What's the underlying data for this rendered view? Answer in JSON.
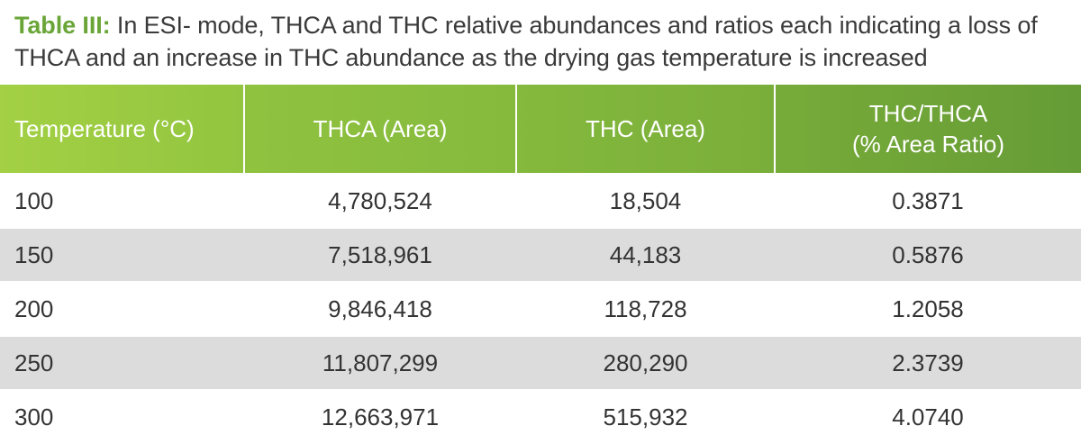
{
  "caption": {
    "label": "Table III:",
    "text": "In ESI- mode, THCA and THC relative abundances and ratios each indicating a loss of THCA and an increase in THC abundance as the drying gas temperature is increased"
  },
  "table": {
    "headers": [
      {
        "line1": "Temperature (°C)",
        "line2": ""
      },
      {
        "line1": "THCA (Area)",
        "line2": ""
      },
      {
        "line1": "THC (Area)",
        "line2": ""
      },
      {
        "line1": "THC/THCA",
        "line2": "(% Area Ratio)"
      }
    ],
    "rows": [
      [
        "100",
        "4,780,524",
        "18,504",
        "0.3871"
      ],
      [
        "150",
        "7,518,961",
        "44,183",
        "0.5876"
      ],
      [
        "200",
        "9,846,418",
        "118,728",
        "1.2058"
      ],
      [
        "250",
        "11,807,299",
        "280,290",
        "2.3739"
      ],
      [
        "300",
        "12,663,971",
        "515,932",
        "4.0740"
      ]
    ]
  },
  "colors": {
    "label_green": "#6aa537",
    "header_light": "#a3d044",
    "header_dark": "#669c36",
    "row_shade": "#dcdcdc"
  }
}
